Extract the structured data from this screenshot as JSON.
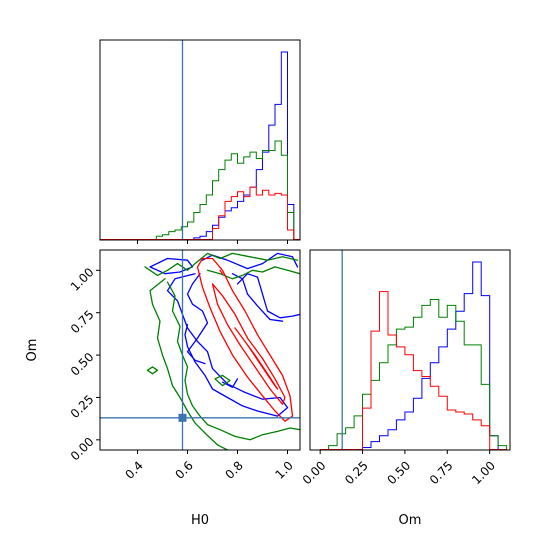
{
  "chart_data": {
    "type": "corner",
    "parameters": [
      "H0",
      "Om"
    ],
    "axis_labels": {
      "H0": "H0",
      "Om": "Om"
    },
    "ranges": {
      "H0": [
        0.25,
        1.05
      ],
      "Om": [
        -0.06,
        1.12
      ]
    },
    "ticks": {
      "H0": {
        "values": [
          0.4,
          0.6,
          0.8,
          1.0
        ],
        "labels": [
          "0.4",
          "0.6",
          "0.8",
          "1.0"
        ]
      },
      "Om": {
        "values": [
          0.0,
          0.25,
          0.5,
          0.75,
          1.0
        ],
        "labels": [
          "0.00",
          "0.25",
          "0.50",
          "0.75",
          "1.00"
        ]
      }
    },
    "truth": {
      "H0": 0.58,
      "Om": 0.13,
      "color": "#3b75af"
    },
    "series_colors": [
      "#0000ff",
      "#008000",
      "#ff0000"
    ],
    "histograms": {
      "H0": {
        "bin_edges": [
          0.25,
          0.275,
          0.3,
          0.325,
          0.35,
          0.375,
          0.4,
          0.425,
          0.45,
          0.475,
          0.5,
          0.525,
          0.55,
          0.575,
          0.6,
          0.625,
          0.65,
          0.675,
          0.7,
          0.725,
          0.75,
          0.775,
          0.8,
          0.825,
          0.85,
          0.875,
          0.9,
          0.925,
          0.95,
          0.975,
          1.0,
          1.025,
          1.05
        ],
        "series": [
          {
            "color": "#0000ff",
            "counts": [
              0,
              0,
              0,
              0,
              0,
              0,
              0,
              0,
              0,
              0,
              0,
              0,
              0,
              0,
              0,
              1,
              2,
              5,
              9,
              14,
              18,
              20,
              24,
              28,
              33,
              44,
              55,
              72,
              85,
              118,
              22,
              0
            ]
          },
          {
            "color": "#008000",
            "counts": [
              0,
              0,
              0,
              0,
              0,
              0,
              0,
              0,
              0,
              2,
              3,
              5,
              6,
              8,
              11,
              17,
              22,
              28,
              37,
              44,
              50,
              54,
              48,
              52,
              55,
              51,
              56,
              56,
              62,
              53,
              17,
              0
            ]
          },
          {
            "color": "#ff0000",
            "counts": [
              0,
              0,
              0,
              0,
              0,
              0,
              0,
              0,
              0,
              0,
              0,
              0,
              0,
              0,
              0,
              0,
              0,
              0,
              7,
              15,
              24,
              27,
              30,
              27,
              33,
              28,
              31,
              28,
              29,
              28,
              6,
              0
            ]
          }
        ]
      },
      "Om": {
        "bin_edges": [
          0.0,
          0.05,
          0.1,
          0.15,
          0.2,
          0.25,
          0.3,
          0.35,
          0.4,
          0.45,
          0.5,
          0.55,
          0.6,
          0.65,
          0.7,
          0.75,
          0.8,
          0.85,
          0.9,
          0.95,
          1.0,
          1.05,
          1.1
        ],
        "series": [
          {
            "color": "#0000ff",
            "counts": [
              0,
              0,
              0,
              0,
              0,
              1,
              4,
              7,
              10,
              15,
              19,
              26,
              36,
              44,
              52,
              61,
              70,
              79,
              95,
              78,
              7,
              0
            ]
          },
          {
            "color": "#008000",
            "counts": [
              0,
              2,
              8,
              11,
              17,
              28,
              35,
              44,
              53,
              61,
              62,
              67,
              73,
              76,
              67,
              73,
              65,
              53,
              53,
              33,
              7,
              2
            ]
          },
          {
            "color": "#ff0000",
            "counts": [
              0,
              0,
              0,
              0,
              0,
              21,
              60,
              80,
              58,
              52,
              48,
              40,
              37,
              32,
              27,
              20,
              19,
              18,
              15,
              12,
              0,
              0
            ]
          }
        ]
      }
    },
    "contours": [
      {
        "color": "#0000ff",
        "paths": [
          [
            [
              0.66,
              1.06
            ],
            [
              0.7,
              1.09
            ],
            [
              0.76,
              1.06
            ],
            [
              0.84,
              1.01
            ],
            [
              0.9,
              1.04
            ],
            [
              0.96,
              1.1
            ],
            [
              1.02,
              1.08
            ],
            [
              1.04,
              1.02
            ]
          ],
          [
            [
              0.45,
              1.02
            ],
            [
              0.52,
              1.07
            ],
            [
              0.6,
              1.06
            ],
            [
              0.62,
              1.02
            ],
            [
              0.57,
              0.99
            ],
            [
              0.51,
              0.98
            ],
            [
              0.45,
              1.02
            ]
          ],
          [
            [
              0.63,
              0.98
            ],
            [
              0.55,
              0.95
            ],
            [
              0.52,
              0.88
            ],
            [
              0.56,
              0.82
            ],
            [
              0.58,
              0.74
            ],
            [
              0.6,
              0.66
            ],
            [
              0.64,
              0.58
            ],
            [
              0.68,
              0.52
            ],
            [
              0.7,
              0.42
            ],
            [
              0.76,
              0.33
            ],
            [
              0.83,
              0.28
            ],
            [
              0.9,
              0.24
            ],
            [
              0.97,
              0.25
            ],
            [
              1.0,
              0.19
            ],
            [
              0.96,
              0.14
            ],
            [
              0.88,
              0.17
            ],
            [
              0.82,
              0.2
            ],
            [
              0.76,
              0.25
            ],
            [
              0.7,
              0.3
            ],
            [
              0.67,
              0.38
            ],
            [
              0.63,
              0.46
            ],
            [
              0.6,
              0.55
            ],
            [
              0.59,
              0.62
            ],
            [
              0.6,
              0.68
            ]
          ],
          [
            [
              0.65,
              0.98
            ],
            [
              0.62,
              0.92
            ],
            [
              0.6,
              0.86
            ],
            [
              0.62,
              0.8
            ],
            [
              0.66,
              0.76
            ],
            [
              0.68,
              0.69
            ],
            [
              0.64,
              0.6
            ],
            [
              0.6,
              0.52
            ],
            [
              0.63,
              0.47
            ],
            [
              0.67,
              0.45
            ]
          ],
          [
            [
              0.8,
              0.92
            ],
            [
              0.84,
              0.98
            ],
            [
              0.88,
              0.96
            ],
            [
              0.9,
              0.86
            ],
            [
              0.92,
              0.76
            ],
            [
              0.97,
              0.72
            ],
            [
              1.02,
              0.73
            ],
            [
              1.05,
              0.74
            ]
          ],
          [
            [
              0.78,
              0.98
            ],
            [
              0.82,
              0.95
            ],
            [
              0.84,
              0.86
            ],
            [
              0.88,
              0.79
            ],
            [
              0.93,
              0.71
            ],
            [
              0.98,
              0.7
            ]
          ],
          [
            [
              0.74,
              0.34
            ],
            [
              0.78,
              0.31
            ],
            [
              0.8,
              0.36
            ]
          ]
        ]
      },
      {
        "color": "#008000",
        "paths": [
          [
            [
              0.43,
              1.02
            ],
            [
              0.48,
              0.97
            ],
            [
              0.52,
              1.0
            ],
            [
              0.56,
              1.04
            ],
            [
              0.6,
              1.0
            ],
            [
              0.63,
              1.04
            ],
            [
              0.68,
              1.1
            ],
            [
              0.73,
              1.07
            ],
            [
              0.78,
              1.1
            ],
            [
              0.85,
              1.08
            ],
            [
              0.92,
              1.06
            ],
            [
              0.98,
              1.08
            ],
            [
              1.04,
              1.06
            ]
          ],
          [
            [
              0.51,
              0.95
            ],
            [
              0.45,
              0.88
            ],
            [
              0.46,
              0.8
            ],
            [
              0.49,
              0.7
            ],
            [
              0.48,
              0.6
            ],
            [
              0.5,
              0.5
            ],
            [
              0.52,
              0.42
            ],
            [
              0.54,
              0.32
            ],
            [
              0.57,
              0.25
            ],
            [
              0.6,
              0.17
            ],
            [
              0.63,
              0.1
            ],
            [
              0.67,
              0.04
            ],
            [
              0.72,
              -0.03
            ],
            [
              0.76,
              -0.06
            ]
          ],
          [
            [
              0.52,
              0.93
            ],
            [
              0.55,
              0.85
            ],
            [
              0.54,
              0.76
            ],
            [
              0.57,
              0.67
            ],
            [
              0.56,
              0.58
            ],
            [
              0.58,
              0.5
            ],
            [
              0.6,
              0.43
            ],
            [
              0.59,
              0.35
            ],
            [
              0.6,
              0.27
            ],
            [
              0.62,
              0.2
            ],
            [
              0.65,
              0.14
            ],
            [
              0.68,
              0.09
            ],
            [
              0.73,
              0.06
            ],
            [
              0.79,
              0.02
            ],
            [
              0.85,
              0.0
            ],
            [
              0.9,
              0.03
            ],
            [
              0.96,
              0.05
            ],
            [
              1.01,
              0.07
            ],
            [
              1.05,
              0.06
            ]
          ],
          [
            [
              0.68,
              1.0
            ],
            [
              0.73,
              0.98
            ],
            [
              0.78,
              0.95
            ],
            [
              0.82,
              0.97
            ],
            [
              0.86,
              1.0
            ],
            [
              0.9,
              0.99
            ],
            [
              0.95,
              1.02
            ],
            [
              1.0,
              1.0
            ],
            [
              1.05,
              0.98
            ]
          ],
          [
            [
              0.71,
              0.36
            ],
            [
              0.74,
              0.38
            ],
            [
              0.77,
              0.35
            ],
            [
              0.74,
              0.32
            ],
            [
              0.71,
              0.36
            ]
          ],
          [
            [
              0.44,
              0.41
            ],
            [
              0.46,
              0.43
            ],
            [
              0.48,
              0.41
            ],
            [
              0.46,
              0.39
            ],
            [
              0.44,
              0.41
            ]
          ]
        ]
      },
      {
        "color": "#ff0000",
        "paths": [
          [
            [
              0.64,
              1.02
            ],
            [
              0.66,
              1.07
            ],
            [
              0.7,
              1.07
            ],
            [
              0.74,
              1.0
            ],
            [
              0.78,
              0.88
            ],
            [
              0.83,
              0.76
            ],
            [
              0.88,
              0.62
            ],
            [
              0.93,
              0.5
            ],
            [
              0.98,
              0.38
            ],
            [
              1.01,
              0.26
            ],
            [
              1.02,
              0.14
            ],
            [
              0.99,
              0.11
            ],
            [
              0.95,
              0.17
            ],
            [
              0.9,
              0.26
            ],
            [
              0.84,
              0.37
            ],
            [
              0.78,
              0.5
            ],
            [
              0.73,
              0.64
            ],
            [
              0.69,
              0.78
            ],
            [
              0.66,
              0.9
            ],
            [
              0.64,
              1.02
            ]
          ],
          [
            [
              0.7,
              0.92
            ],
            [
              0.74,
              0.85
            ],
            [
              0.79,
              0.74
            ],
            [
              0.84,
              0.6
            ],
            [
              0.9,
              0.48
            ],
            [
              0.95,
              0.36
            ],
            [
              0.99,
              0.25
            ],
            [
              0.98,
              0.21
            ],
            [
              0.93,
              0.3
            ],
            [
              0.87,
              0.43
            ],
            [
              0.81,
              0.56
            ],
            [
              0.76,
              0.68
            ],
            [
              0.72,
              0.8
            ],
            [
              0.7,
              0.92
            ]
          ],
          [
            [
              0.79,
              0.66
            ],
            [
              0.84,
              0.56
            ],
            [
              0.89,
              0.45
            ],
            [
              0.94,
              0.34
            ],
            [
              0.96,
              0.3
            ],
            [
              0.92,
              0.39
            ],
            [
              0.87,
              0.5
            ],
            [
              0.82,
              0.6
            ],
            [
              0.79,
              0.66
            ]
          ],
          [
            [
              0.73,
              1.0
            ],
            [
              0.74,
              0.98
            ]
          ]
        ]
      }
    ]
  }
}
